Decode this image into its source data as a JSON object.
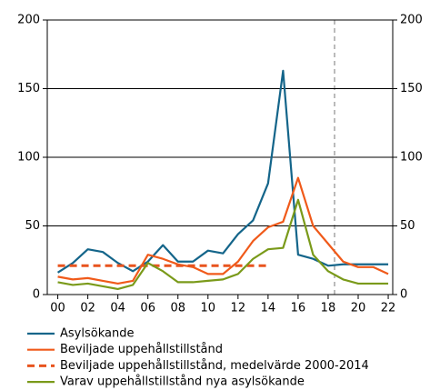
{
  "chart_data": {
    "type": "line",
    "x": [
      0,
      1,
      2,
      3,
      4,
      5,
      6,
      7,
      8,
      9,
      10,
      11,
      12,
      13,
      14,
      15,
      16,
      17,
      18,
      19,
      20,
      21,
      22
    ],
    "xlim": [
      -0.7,
      22.3
    ],
    "xticks": [
      {
        "value": 0,
        "label": "00"
      },
      {
        "value": 2,
        "label": "02"
      },
      {
        "value": 4,
        "label": "04"
      },
      {
        "value": 6,
        "label": "06"
      },
      {
        "value": 8,
        "label": "08"
      },
      10,
      12,
      14,
      16,
      18,
      20,
      22
    ],
    "ylim": [
      0,
      200
    ],
    "yticks": [
      0,
      50,
      100,
      150,
      200
    ],
    "grid": true,
    "legend": "bottom",
    "series": [
      {
        "name": "Asylsökande",
        "color": "#14658a",
        "dash": false,
        "values": [
          16,
          23,
          33,
          31,
          23,
          17,
          24,
          36,
          24,
          24,
          32,
          30,
          44,
          54,
          81,
          163,
          29,
          26,
          21,
          22,
          22,
          22,
          22
        ]
      },
      {
        "name": "Beviljade uppehållstillstånd",
        "color": "#f05a1a",
        "dash": false,
        "values": [
          13,
          11,
          12,
          10,
          8,
          10,
          29,
          26,
          22,
          20,
          15,
          15,
          24,
          39,
          49,
          53,
          85,
          50,
          37,
          24,
          20,
          20,
          15
        ]
      },
      {
        "name": "Beviljade uppehållstillstånd, medelvärde 2000-2014",
        "color": "#e8541e",
        "dash": true,
        "values": [
          21,
          21,
          21,
          21,
          21,
          21,
          21,
          21,
          21,
          21,
          21,
          21,
          21,
          21,
          21,
          null,
          null,
          null,
          null,
          null,
          null,
          null,
          null
        ]
      },
      {
        "name": "Varav uppehållstillstånd nya asylsökande",
        "color": "#7a9a1a",
        "dash": false,
        "values": [
          9,
          7,
          8,
          6,
          4,
          7,
          23,
          17,
          9,
          9,
          10,
          11,
          15,
          26,
          33,
          34,
          69,
          29,
          17,
          11,
          8,
          8,
          8
        ]
      }
    ]
  }
}
